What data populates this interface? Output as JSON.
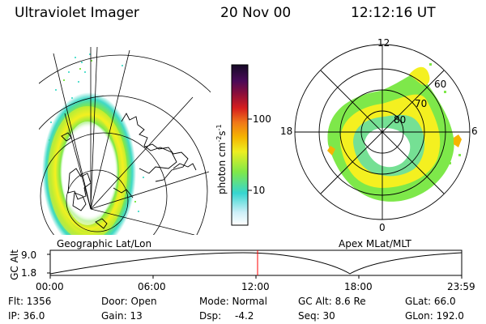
{
  "header": {
    "instrument": "Ultraviolet Imager",
    "date": "20 Nov 00",
    "time": "12:12:16 UT"
  },
  "left_panel": {
    "caption": "Geographic Lat/Lon"
  },
  "right_panel": {
    "caption": "Apex MLat/MLT",
    "mlt_labels": [
      "12",
      "18",
      "6",
      "0"
    ],
    "lat_labels": [
      "60",
      "70",
      "80"
    ]
  },
  "colorbar": {
    "unit_label": "photon cm",
    "unit_exp1": "-2",
    "unit_mid": "s",
    "unit_exp2": "-1",
    "ticks": [
      "100",
      "10"
    ],
    "scale": "log"
  },
  "timeline": {
    "ylabel": "GC Alt",
    "y_ticks": [
      "9.0",
      "1.8"
    ],
    "x_ticks": [
      "00:00",
      "06:00",
      "12:00",
      "18:00",
      "23:59"
    ],
    "marker_time": "12:12",
    "marker_color": "#ff0000"
  },
  "status": {
    "flt": "Flt: 1356",
    "door": "Door: Open",
    "mode": "Mode: Normal",
    "gc_alt": "GC Alt: 8.6 Re",
    "glat": "GLat: 66.0",
    "ip": "IP: 36.0",
    "gain": "Gain: 13",
    "dsp_label": "Dsp:",
    "dsp_value": "-4.2",
    "seq": "Seq: 30",
    "glon": "GLon: 192.0"
  },
  "colors": {
    "aurora_outer": "#7ee84a",
    "aurora_mid": "#f4f020",
    "aurora_edge": "#3fd9c6",
    "aurora_core": "#f5b400",
    "noise": "#58e0d0"
  }
}
